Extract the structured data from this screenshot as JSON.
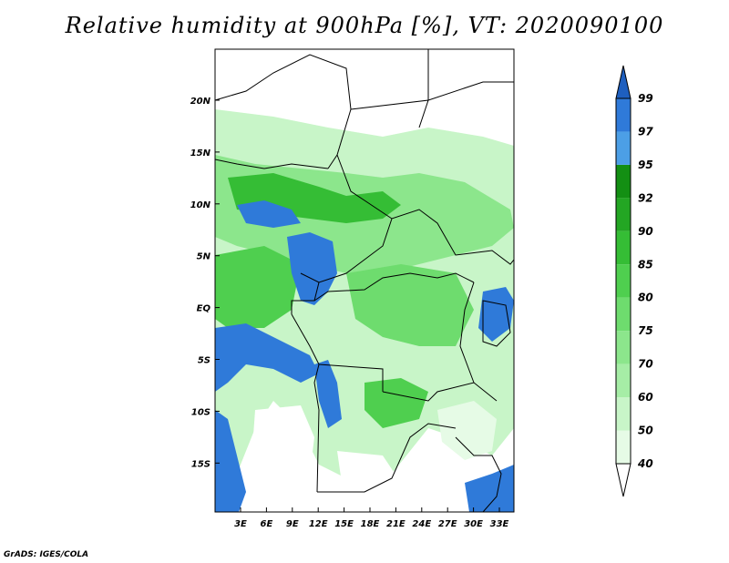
{
  "title": "Relative humidity at 900hPa [%], VT: 2020090100",
  "credit": "GrADS: IGES/COLA",
  "map": {
    "lat_labels": [
      "20N",
      "15N",
      "10N",
      "5N",
      "EQ",
      "5S",
      "10S",
      "15S"
    ],
    "lon_labels": [
      "3E",
      "6E",
      "9E",
      "12E",
      "15E",
      "18E",
      "21E",
      "24E",
      "27E",
      "30E",
      "33E"
    ]
  },
  "colorbar": {
    "levels": [
      "40",
      "50",
      "60",
      "70",
      "75",
      "80",
      "85",
      "90",
      "92",
      "95",
      "97",
      "99"
    ],
    "colors": [
      "#ffffff",
      "#e6fbe6",
      "#c8f5c8",
      "#a6eda6",
      "#8ce68c",
      "#6edc6e",
      "#4fcf4f",
      "#35bd35",
      "#23a623",
      "#138f13",
      "#4c9fe6",
      "#2f7ad9",
      "#1e5fbf"
    ]
  }
}
